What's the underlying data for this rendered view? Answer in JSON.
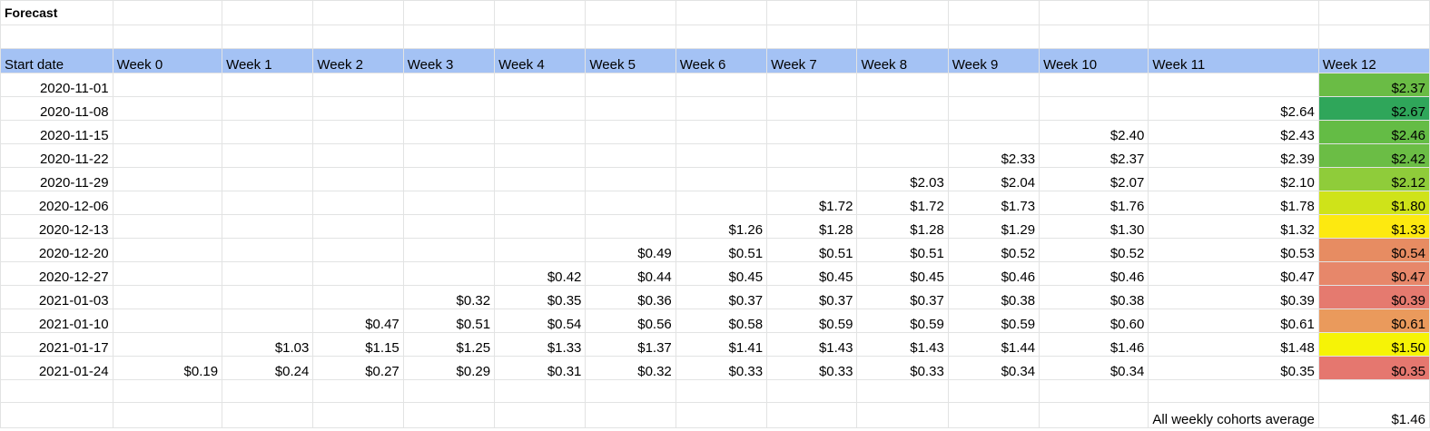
{
  "title": "Forecast",
  "headers": [
    "Start date",
    "Week 0",
    "Week 1",
    "Week 2",
    "Week 3",
    "Week 4",
    "Week 5",
    "Week 6",
    "Week 7",
    "Week 8",
    "Week 9",
    "Week 10",
    "Week 11",
    "Week 12"
  ],
  "rows": [
    {
      "date": "2020-11-01",
      "cells": [
        "",
        "",
        "",
        "",
        "",
        "",
        "",
        "",
        "",
        "",
        "",
        "",
        "$2.37"
      ]
    },
    {
      "date": "2020-11-08",
      "cells": [
        "",
        "",
        "",
        "",
        "",
        "",
        "",
        "",
        "",
        "",
        "",
        "$2.64",
        "$2.67"
      ]
    },
    {
      "date": "2020-11-15",
      "cells": [
        "",
        "",
        "",
        "",
        "",
        "",
        "",
        "",
        "",
        "",
        "$2.40",
        "$2.43",
        "$2.46"
      ]
    },
    {
      "date": "2020-11-22",
      "cells": [
        "",
        "",
        "",
        "",
        "",
        "",
        "",
        "",
        "",
        "$2.33",
        "$2.37",
        "$2.39",
        "$2.42"
      ]
    },
    {
      "date": "2020-11-29",
      "cells": [
        "",
        "",
        "",
        "",
        "",
        "",
        "",
        "",
        "$2.03",
        "$2.04",
        "$2.07",
        "$2.10",
        "$2.12"
      ]
    },
    {
      "date": "2020-12-06",
      "cells": [
        "",
        "",
        "",
        "",
        "",
        "",
        "",
        "$1.72",
        "$1.72",
        "$1.73",
        "$1.76",
        "$1.78",
        "$1.80"
      ]
    },
    {
      "date": "2020-12-13",
      "cells": [
        "",
        "",
        "",
        "",
        "",
        "",
        "$1.26",
        "$1.28",
        "$1.28",
        "$1.29",
        "$1.30",
        "$1.32",
        "$1.33"
      ]
    },
    {
      "date": "2020-12-20",
      "cells": [
        "",
        "",
        "",
        "",
        "",
        "$0.49",
        "$0.51",
        "$0.51",
        "$0.51",
        "$0.52",
        "$0.52",
        "$0.53",
        "$0.54"
      ]
    },
    {
      "date": "2020-12-27",
      "cells": [
        "",
        "",
        "",
        "",
        "$0.42",
        "$0.44",
        "$0.45",
        "$0.45",
        "$0.45",
        "$0.46",
        "$0.46",
        "$0.47",
        "$0.47"
      ]
    },
    {
      "date": "2021-01-03",
      "cells": [
        "",
        "",
        "",
        "$0.32",
        "$0.35",
        "$0.36",
        "$0.37",
        "$0.37",
        "$0.37",
        "$0.38",
        "$0.38",
        "$0.39",
        "$0.39"
      ]
    },
    {
      "date": "2021-01-10",
      "cells": [
        "",
        "",
        "$0.47",
        "$0.51",
        "$0.54",
        "$0.56",
        "$0.58",
        "$0.59",
        "$0.59",
        "$0.59",
        "$0.60",
        "$0.61",
        "$0.61"
      ]
    },
    {
      "date": "2021-01-17",
      "cells": [
        "",
        "$1.03",
        "$1.15",
        "$1.25",
        "$1.33",
        "$1.37",
        "$1.41",
        "$1.43",
        "$1.43",
        "$1.44",
        "$1.46",
        "$1.48",
        "$1.50"
      ]
    },
    {
      "date": "2021-01-24",
      "cells": [
        "$0.19",
        "$0.24",
        "$0.27",
        "$0.29",
        "$0.31",
        "$0.32",
        "$0.33",
        "$0.33",
        "$0.33",
        "$0.34",
        "$0.34",
        "$0.35",
        "$0.35"
      ]
    }
  ],
  "week12_colors": [
    "#6abc45",
    "#2fa65a",
    "#64bc45",
    "#6bbd45",
    "#8fcc3a",
    "#cfe319",
    "#fde910",
    "#e78c62",
    "#e7876a",
    "#e57a6f",
    "#ea9a5c",
    "#f6f306",
    "#e5776f"
  ],
  "average": {
    "label": "All weekly cohorts average",
    "value": "$1.46"
  }
}
